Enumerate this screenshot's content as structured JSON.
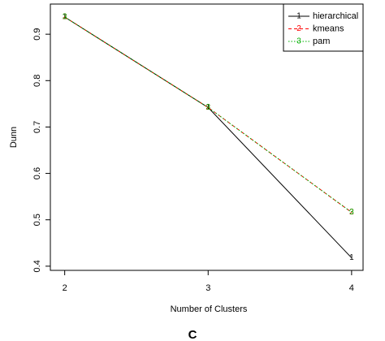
{
  "chart_data": {
    "type": "line",
    "x_label": "Number of Clusters",
    "y_label": "Dunn",
    "caption": "C",
    "x": [
      2,
      3,
      4
    ],
    "series": [
      {
        "name": "hierarchical",
        "marker": "1",
        "color": "#000000",
        "linestyle": "solid",
        "values": [
          0.937,
          0.742,
          0.418
        ]
      },
      {
        "name": "kmeans",
        "marker": "2",
        "color": "#ff0000",
        "linestyle": "dashed",
        "values": [
          0.937,
          0.742,
          0.516
        ]
      },
      {
        "name": "pam",
        "marker": "3",
        "color": "#00b000",
        "linestyle": "dotted",
        "values": [
          0.937,
          0.742,
          0.516
        ]
      }
    ],
    "xlim": [
      1.9,
      4.08
    ],
    "ylim": [
      0.391,
      0.965
    ],
    "xticks": [
      2,
      3,
      4
    ],
    "yticks": [
      0.4,
      0.5,
      0.6,
      0.7,
      0.8,
      0.9
    ],
    "legend": "top-right"
  }
}
